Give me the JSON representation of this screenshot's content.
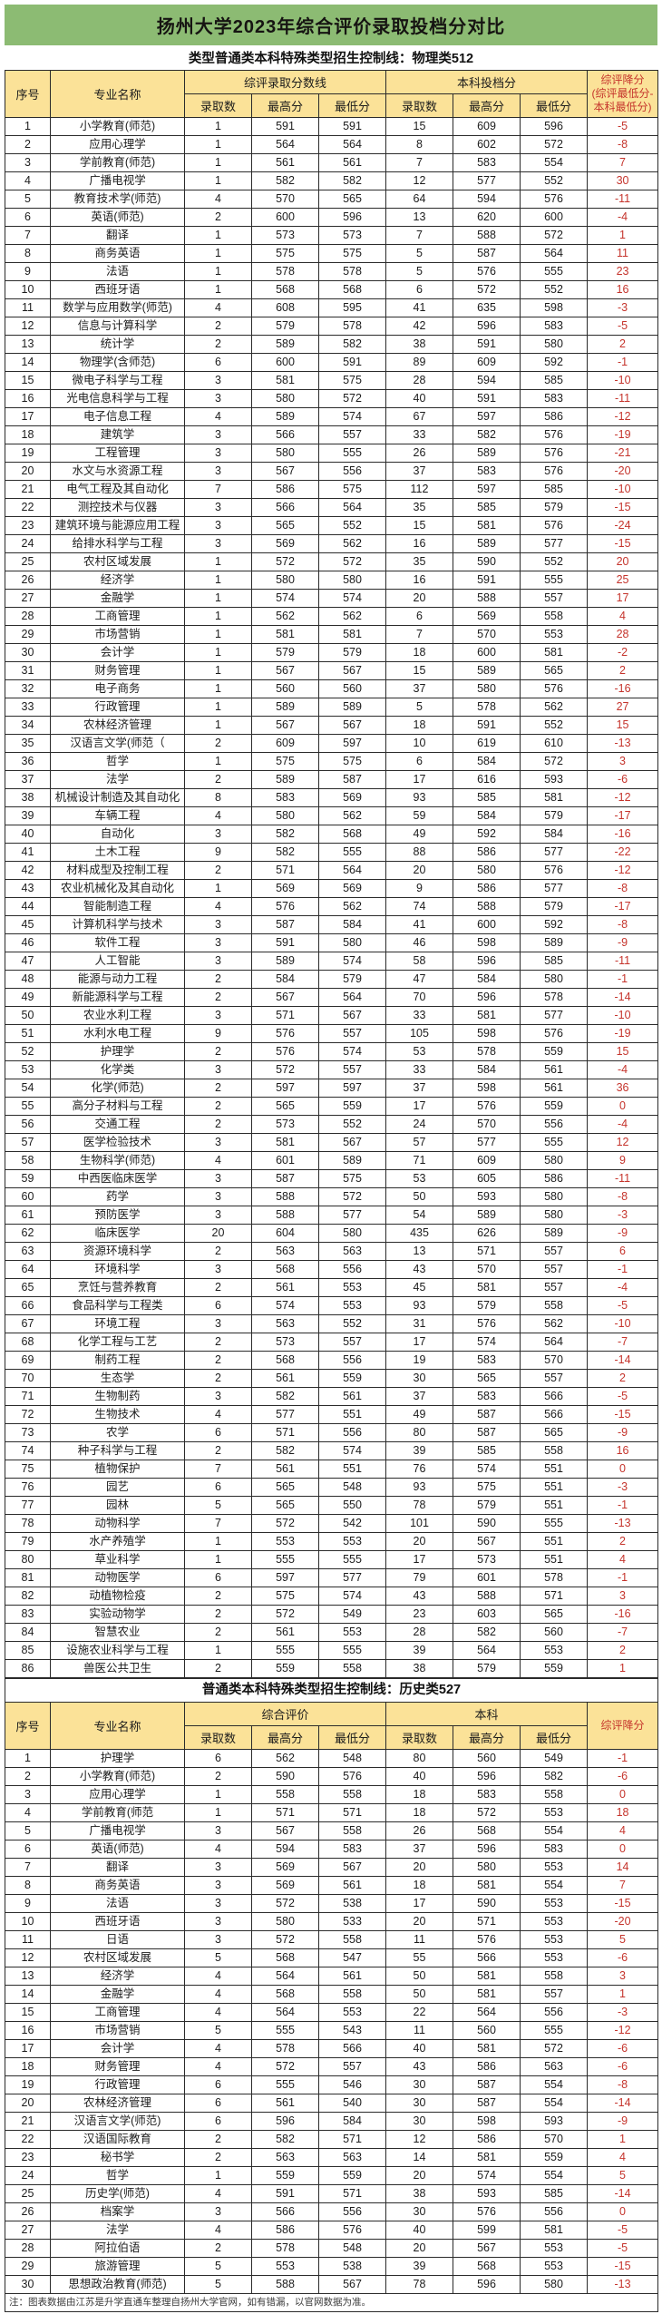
{
  "title": "扬州大学2023年综合评价录取投档分对比",
  "footer_note": "注：图表数据由江苏是升学直通车整理自扬州大学官网，如有错漏，以官网数据为准。",
  "colors": {
    "title_bg": "#8cbb73",
    "header_bg": "#fbe298",
    "accent_red": "#c5342c",
    "border_color": "#2b2b2b"
  },
  "table1": {
    "control_line": "类型普通类本科特殊类型招生控制线：物理类512",
    "headers": {
      "seq": "序号",
      "major": "专业名称",
      "group1": "综评录取分数线",
      "group2": "本科投档分",
      "drop": "综评降分",
      "drop_sub": "(综评最低分-本科最低分)",
      "sub": [
        "录取数",
        "最高分",
        "最低分",
        "录取数",
        "最高分",
        "最低分"
      ]
    },
    "rows": [
      [
        1,
        "小学教育(师范)",
        1,
        591,
        591,
        15,
        609,
        596,
        -5
      ],
      [
        2,
        "应用心理学",
        1,
        564,
        564,
        8,
        602,
        572,
        -8
      ],
      [
        3,
        "学前教育(师范)",
        1,
        561,
        561,
        7,
        583,
        554,
        7
      ],
      [
        4,
        "广播电视学",
        1,
        582,
        582,
        12,
        577,
        552,
        30
      ],
      [
        5,
        "教育技术学(师范)",
        4,
        570,
        565,
        64,
        594,
        576,
        -11
      ],
      [
        6,
        "英语(师范)",
        2,
        600,
        596,
        13,
        620,
        600,
        -4
      ],
      [
        7,
        "翻译",
        1,
        573,
        573,
        7,
        588,
        572,
        1
      ],
      [
        8,
        "商务英语",
        1,
        575,
        575,
        5,
        587,
        564,
        11
      ],
      [
        9,
        "法语",
        1,
        578,
        578,
        5,
        576,
        555,
        23
      ],
      [
        10,
        "西班牙语",
        1,
        568,
        568,
        6,
        572,
        552,
        16
      ],
      [
        11,
        "数学与应用数学(师范)",
        4,
        608,
        595,
        41,
        635,
        598,
        -3
      ],
      [
        12,
        "信息与计算科学",
        2,
        579,
        578,
        42,
        596,
        583,
        -5
      ],
      [
        13,
        "统计学",
        2,
        589,
        582,
        38,
        591,
        580,
        2
      ],
      [
        14,
        "物理学(含师范)",
        6,
        600,
        591,
        89,
        609,
        592,
        -1
      ],
      [
        15,
        "微电子科学与工程",
        3,
        581,
        575,
        28,
        594,
        585,
        -10
      ],
      [
        16,
        "光电信息科学与工程",
        3,
        580,
        572,
        40,
        591,
        583,
        -11
      ],
      [
        17,
        "电子信息工程",
        4,
        589,
        574,
        67,
        597,
        586,
        -12
      ],
      [
        18,
        "建筑学",
        3,
        566,
        557,
        33,
        582,
        576,
        -19
      ],
      [
        19,
        "工程管理",
        3,
        580,
        555,
        26,
        589,
        576,
        -21
      ],
      [
        20,
        "水文与水资源工程",
        3,
        567,
        556,
        37,
        583,
        576,
        -20
      ],
      [
        21,
        "电气工程及其自动化",
        7,
        586,
        575,
        112,
        597,
        585,
        -10
      ],
      [
        22,
        "测控技术与仪器",
        3,
        566,
        564,
        35,
        585,
        579,
        -15
      ],
      [
        23,
        "建筑环境与能源应用工程",
        3,
        565,
        552,
        15,
        581,
        576,
        -24
      ],
      [
        24,
        "给排水科学与工程",
        3,
        569,
        562,
        16,
        589,
        577,
        -15
      ],
      [
        25,
        "农村区域发展",
        1,
        572,
        572,
        35,
        590,
        552,
        20
      ],
      [
        26,
        "经济学",
        1,
        580,
        580,
        16,
        591,
        555,
        25
      ],
      [
        27,
        "金融学",
        1,
        574,
        574,
        20,
        588,
        557,
        17
      ],
      [
        28,
        "工商管理",
        1,
        562,
        562,
        6,
        569,
        558,
        4
      ],
      [
        29,
        "市场营销",
        1,
        581,
        581,
        7,
        570,
        553,
        28
      ],
      [
        30,
        "会计学",
        1,
        579,
        579,
        18,
        600,
        581,
        -2
      ],
      [
        31,
        "财务管理",
        1,
        567,
        567,
        15,
        589,
        565,
        2
      ],
      [
        32,
        "电子商务",
        1,
        560,
        560,
        37,
        580,
        576,
        -16
      ],
      [
        33,
        "行政管理",
        1,
        589,
        589,
        5,
        578,
        562,
        27
      ],
      [
        34,
        "农林经济管理",
        1,
        567,
        567,
        18,
        591,
        552,
        15
      ],
      [
        35,
        "汉语言文学(师范（",
        2,
        609,
        597,
        10,
        619,
        610,
        -13
      ],
      [
        36,
        "哲学",
        1,
        575,
        575,
        6,
        584,
        572,
        3
      ],
      [
        37,
        "法学",
        2,
        589,
        587,
        17,
        616,
        593,
        -6
      ],
      [
        38,
        "机械设计制造及其自动化",
        8,
        583,
        569,
        93,
        585,
        581,
        -12
      ],
      [
        39,
        "车辆工程",
        4,
        580,
        562,
        59,
        584,
        579,
        -17
      ],
      [
        40,
        "自动化",
        3,
        582,
        568,
        49,
        592,
        584,
        -16
      ],
      [
        41,
        "土木工程",
        9,
        582,
        555,
        88,
        586,
        577,
        -22
      ],
      [
        42,
        "材料成型及控制工程",
        2,
        571,
        564,
        20,
        580,
        576,
        -12
      ],
      [
        43,
        "农业机械化及其自动化",
        1,
        569,
        569,
        9,
        586,
        577,
        -8
      ],
      [
        44,
        "智能制造工程",
        4,
        576,
        562,
        74,
        588,
        579,
        -17
      ],
      [
        45,
        "计算机科学与技术",
        3,
        587,
        584,
        41,
        600,
        592,
        -8
      ],
      [
        46,
        "软件工程",
        3,
        591,
        580,
        46,
        598,
        589,
        -9
      ],
      [
        47,
        "人工智能",
        3,
        589,
        574,
        58,
        596,
        585,
        -11
      ],
      [
        48,
        "能源与动力工程",
        2,
        584,
        579,
        47,
        584,
        580,
        -1
      ],
      [
        49,
        "新能源科学与工程",
        2,
        567,
        564,
        70,
        596,
        578,
        -14
      ],
      [
        50,
        "农业水利工程",
        3,
        571,
        567,
        33,
        581,
        577,
        -10
      ],
      [
        51,
        "水利水电工程",
        9,
        576,
        557,
        105,
        598,
        576,
        -19
      ],
      [
        52,
        "护理学",
        2,
        576,
        574,
        53,
        578,
        559,
        15
      ],
      [
        53,
        "化学类",
        3,
        572,
        557,
        33,
        584,
        561,
        -4
      ],
      [
        54,
        "化学(师范)",
        2,
        597,
        597,
        37,
        598,
        561,
        36
      ],
      [
        55,
        "高分子材料与工程",
        2,
        565,
        559,
        17,
        576,
        559,
        0
      ],
      [
        56,
        "交通工程",
        2,
        573,
        552,
        24,
        570,
        556,
        -4
      ],
      [
        57,
        "医学检验技术",
        3,
        581,
        567,
        57,
        577,
        555,
        12
      ],
      [
        58,
        "生物科学(师范)",
        4,
        601,
        589,
        71,
        609,
        580,
        9
      ],
      [
        59,
        "中西医临床医学",
        3,
        587,
        575,
        53,
        605,
        586,
        -11
      ],
      [
        60,
        "药学",
        3,
        588,
        572,
        50,
        593,
        580,
        -8
      ],
      [
        61,
        "预防医学",
        3,
        588,
        577,
        54,
        589,
        580,
        -3
      ],
      [
        62,
        "临床医学",
        20,
        604,
        580,
        435,
        626,
        589,
        -9
      ],
      [
        63,
        "资源环境科学",
        2,
        563,
        563,
        13,
        571,
        557,
        6
      ],
      [
        64,
        "环境科学",
        3,
        568,
        556,
        43,
        570,
        557,
        -1
      ],
      [
        65,
        "烹饪与营养教育",
        2,
        561,
        553,
        45,
        581,
        557,
        -4
      ],
      [
        66,
        "食品科学与工程类",
        6,
        574,
        553,
        93,
        579,
        558,
        -5
      ],
      [
        67,
        "环境工程",
        3,
        563,
        552,
        31,
        576,
        562,
        -10
      ],
      [
        68,
        "化学工程与工艺",
        2,
        573,
        557,
        17,
        574,
        564,
        -7
      ],
      [
        69,
        "制药工程",
        2,
        568,
        556,
        19,
        583,
        570,
        -14
      ],
      [
        70,
        "生态学",
        2,
        561,
        559,
        30,
        565,
        557,
        2
      ],
      [
        71,
        "生物制药",
        3,
        582,
        561,
        37,
        583,
        566,
        -5
      ],
      [
        72,
        "生物技术",
        4,
        577,
        551,
        49,
        587,
        566,
        -15
      ],
      [
        73,
        "农学",
        6,
        571,
        556,
        80,
        587,
        565,
        -9
      ],
      [
        74,
        "种子科学与工程",
        2,
        582,
        574,
        39,
        585,
        558,
        16
      ],
      [
        75,
        "植物保护",
        7,
        561,
        551,
        76,
        574,
        551,
        0
      ],
      [
        76,
        "园艺",
        6,
        565,
        548,
        93,
        575,
        551,
        -3
      ],
      [
        77,
        "园林",
        5,
        565,
        550,
        78,
        579,
        551,
        -1
      ],
      [
        78,
        "动物科学",
        7,
        572,
        542,
        101,
        590,
        555,
        -13
      ],
      [
        79,
        "水产养殖学",
        1,
        553,
        553,
        20,
        567,
        551,
        2
      ],
      [
        80,
        "草业科学",
        1,
        555,
        555,
        17,
        573,
        551,
        4
      ],
      [
        81,
        "动物医学",
        6,
        597,
        577,
        79,
        601,
        578,
        -1
      ],
      [
        82,
        "动植物检疫",
        2,
        575,
        574,
        43,
        588,
        571,
        3
      ],
      [
        83,
        "实验动物学",
        2,
        572,
        549,
        23,
        603,
        565,
        -16
      ],
      [
        84,
        "智慧农业",
        2,
        561,
        553,
        28,
        582,
        560,
        -7
      ],
      [
        85,
        "设施农业科学与工程",
        1,
        555,
        555,
        39,
        564,
        553,
        2
      ],
      [
        86,
        "兽医公共卫生",
        2,
        559,
        558,
        38,
        579,
        559,
        1
      ]
    ]
  },
  "table2": {
    "control_line": "普通类本科特殊类型招生控制线：历史类527",
    "headers": {
      "seq": "序号",
      "major": "专业名称",
      "group1": "综合评价",
      "group2": "本科",
      "drop": "综评降分",
      "sub": [
        "录取数",
        "最高分",
        "最低分",
        "录取数",
        "最高分",
        "最低分"
      ]
    },
    "rows": [
      [
        1,
        "护理学",
        6,
        562,
        548,
        80,
        560,
        549,
        -1
      ],
      [
        2,
        "小学教育(师范)",
        2,
        590,
        576,
        40,
        596,
        582,
        -6
      ],
      [
        3,
        "应用心理学",
        1,
        558,
        558,
        18,
        583,
        558,
        0
      ],
      [
        4,
        "学前教育(师范",
        1,
        571,
        571,
        18,
        572,
        553,
        18
      ],
      [
        5,
        "广播电视学",
        3,
        567,
        558,
        26,
        568,
        554,
        4
      ],
      [
        6,
        "英语(师范)",
        4,
        594,
        583,
        37,
        596,
        583,
        0
      ],
      [
        7,
        "翻译",
        3,
        569,
        567,
        20,
        580,
        553,
        14
      ],
      [
        8,
        "商务英语",
        3,
        569,
        561,
        18,
        581,
        554,
        7
      ],
      [
        9,
        "法语",
        3,
        572,
        538,
        17,
        590,
        553,
        -15
      ],
      [
        10,
        "西班牙语",
        3,
        580,
        533,
        20,
        571,
        553,
        -20
      ],
      [
        11,
        "日语",
        3,
        572,
        558,
        11,
        576,
        553,
        5
      ],
      [
        12,
        "农村区域发展",
        5,
        568,
        547,
        55,
        566,
        553,
        -6
      ],
      [
        13,
        "经济学",
        4,
        564,
        561,
        50,
        581,
        558,
        3
      ],
      [
        14,
        "金融学",
        4,
        568,
        558,
        50,
        581,
        557,
        1
      ],
      [
        15,
        "工商管理",
        4,
        564,
        553,
        22,
        564,
        556,
        -3
      ],
      [
        16,
        "市场营销",
        5,
        555,
        543,
        11,
        560,
        555,
        -12
      ],
      [
        17,
        "会计学",
        4,
        578,
        566,
        40,
        581,
        572,
        -6
      ],
      [
        18,
        "财务管理",
        4,
        572,
        557,
        43,
        586,
        563,
        -6
      ],
      [
        19,
        "行政管理",
        6,
        555,
        546,
        30,
        587,
        554,
        -8
      ],
      [
        20,
        "农林经济管理",
        6,
        561,
        540,
        30,
        587,
        554,
        -14
      ],
      [
        21,
        "汉语言文学(师范)",
        6,
        596,
        584,
        30,
        598,
        593,
        -9
      ],
      [
        22,
        "汉语国际教育",
        2,
        582,
        571,
        12,
        586,
        570,
        1
      ],
      [
        23,
        "秘书学",
        2,
        563,
        563,
        14,
        581,
        559,
        4
      ],
      [
        24,
        "哲学",
        1,
        559,
        559,
        20,
        574,
        554,
        5
      ],
      [
        25,
        "历史学(师范)",
        4,
        591,
        571,
        38,
        593,
        585,
        -14
      ],
      [
        26,
        "档案学",
        3,
        566,
        556,
        30,
        576,
        556,
        0
      ],
      [
        27,
        "法学",
        4,
        586,
        576,
        40,
        599,
        581,
        -5
      ],
      [
        28,
        "阿拉伯语",
        2,
        578,
        548,
        20,
        567,
        553,
        -5
      ],
      [
        29,
        "旅游管理",
        5,
        553,
        538,
        39,
        568,
        553,
        -15
      ],
      [
        30,
        "思想政治教育(师范)",
        5,
        588,
        567,
        78,
        596,
        580,
        -13
      ]
    ]
  }
}
